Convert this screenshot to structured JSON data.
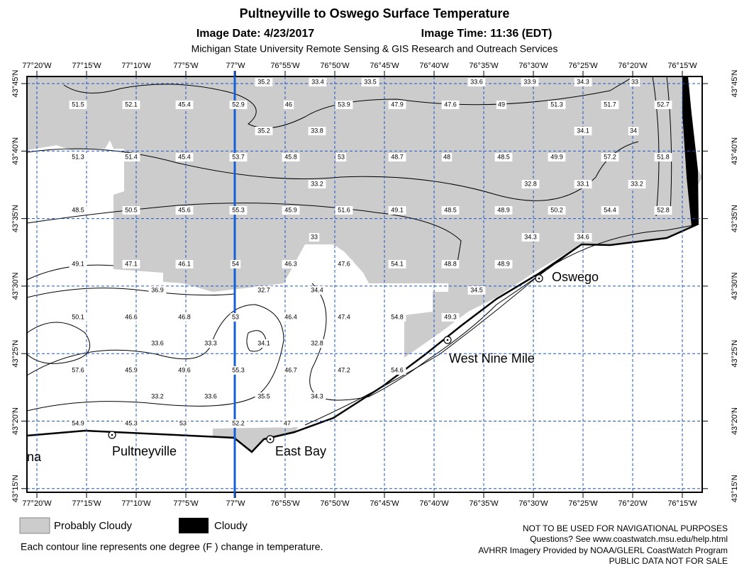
{
  "header": {
    "title": "Pultneyville to Oswego Surface Temperature",
    "image_date": "Image Date: 4/23/2017",
    "image_time": "Image Time: 11:36 (EDT)",
    "subtitle": "Michigan State University Remote Sensing & GIS Research and Outreach Services"
  },
  "longitude_labels": [
    "77°20'W",
    "77°15'W",
    "77°10'W",
    "77°5'W",
    "77°W",
    "76°55'W",
    "76°50'W",
    "76°45'W",
    "76°40'W",
    "76°35'W",
    "76°30'W",
    "76°25'W",
    "76°20'W",
    "76°15'W"
  ],
  "latitude_labels": [
    "43°45'N",
    "43°40'N",
    "43°35'N",
    "43°30'N",
    "43°25'N",
    "43°20'N",
    "43°15'N"
  ],
  "temperature_labels": [
    35.2,
    33.4,
    33.5,
    33.6,
    33.9,
    34.3,
    33,
    51.5,
    52.1,
    45.4,
    52.9,
    46,
    53.9,
    47.9,
    47.6,
    49,
    51.3,
    51.7,
    52.7,
    35.2,
    33.8,
    34.1,
    34,
    51.3,
    51.4,
    45.4,
    53.7,
    45.8,
    53,
    48.7,
    48,
    48.5,
    49.9,
    57.2,
    51.8,
    33.2,
    32.8,
    33.1,
    33.2,
    48.5,
    50.5,
    45.6,
    55.3,
    45.9,
    51.6,
    49.1,
    48.5,
    48.9,
    50.2,
    54.4,
    52.8,
    33,
    34.3,
    34.6,
    49.1,
    47.1,
    46.1,
    54,
    46.3,
    47.6,
    54.1,
    48.8,
    48.9,
    36.9,
    32.7,
    34.4,
    34.5,
    50.1,
    46.6,
    46.8,
    53,
    46.4,
    47.4,
    54.8,
    49.3,
    33.6,
    33.3,
    34.1,
    32.8,
    57.6,
    45.9,
    49.6,
    55.3,
    46.7,
    47.2,
    54.6,
    33.2,
    33.6,
    35.5,
    34.3,
    54.9,
    45.3,
    53,
    52.2,
    47
  ],
  "places": [
    "Oswego",
    "West Nine Mile",
    "Pultneyville",
    "East Bay",
    "na"
  ],
  "legend": [
    "Probably Cloudy",
    "Cloudy"
  ],
  "contour_note": "Each contour line represents one degree (F ) change in temperature.",
  "disclaimer": [
    "NOT TO BE USED FOR NAVIGATIONAL PURPOSES",
    "Questions?  See www.coastwatch.msu.edu/help.html",
    "AVHRR Imagery Provided by NOAA/GLERL CoastWatch Program",
    "PUBLIC DATA NOT FOR SALE"
  ]
}
